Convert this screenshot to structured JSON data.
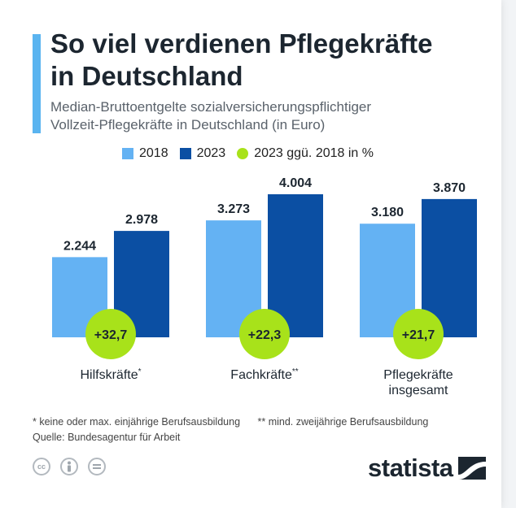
{
  "header": {
    "title_line1": "So viel verdienen Pflegekräfte",
    "title_line2": "in Deutschland",
    "subtitle_line1": "Median-Bruttoentgelte sozialversicherungspflichtiger",
    "subtitle_line2": "Vollzeit-Pflegekräfte in Deutschland (in Euro)",
    "accent_color": "#5ab4f0"
  },
  "legend": [
    {
      "label": "2018",
      "color": "#64b2f3",
      "shape": "square"
    },
    {
      "label": "2023",
      "color": "#0b4fa3",
      "shape": "square"
    },
    {
      "label": "2023 ggü. 2018 in %",
      "color": "#a8e21a",
      "shape": "circle"
    }
  ],
  "chart_data": {
    "type": "bar",
    "categories": [
      {
        "label": "Hilfskräfte",
        "marker": "*"
      },
      {
        "label": "Fachkräfte",
        "marker": "**"
      },
      {
        "label": "Pflegekräfte insgesamt",
        "marker": ""
      }
    ],
    "series": [
      {
        "name": "2018",
        "values": [
          2244,
          3273,
          3180
        ],
        "labels": [
          "2.244",
          "3.273",
          "3.180"
        ],
        "color": "#64b2f3"
      },
      {
        "name": "2023",
        "values": [
          2978,
          4004,
          3870
        ],
        "labels": [
          "2.978",
          "4.004",
          "3.870"
        ],
        "color": "#0b4fa3"
      }
    ],
    "change": {
      "name": "2023 ggü. 2018 in %",
      "values": [
        32.7,
        22.3,
        21.7
      ],
      "labels": [
        "+32,7",
        "+22,3",
        "+21,7"
      ],
      "color": "#a8e21a"
    },
    "ylim": [
      0,
      4004
    ],
    "grid": false,
    "legend_position": "top"
  },
  "footer": {
    "footnote1": "* keine oder max. einjährige Berufsausbildung",
    "footnote2": "** mind. zweijährige Berufsausbildung",
    "source": "Quelle: Bundesagentur für Arbeit",
    "license_icons": [
      {
        "icon": "cc-icon",
        "text": "cc"
      },
      {
        "icon": "attribution-icon",
        "text": ""
      },
      {
        "icon": "no-derivatives-icon",
        "text": ""
      }
    ],
    "logo_text": "statista",
    "logo_mark_icon": "statista-wave-icon"
  }
}
